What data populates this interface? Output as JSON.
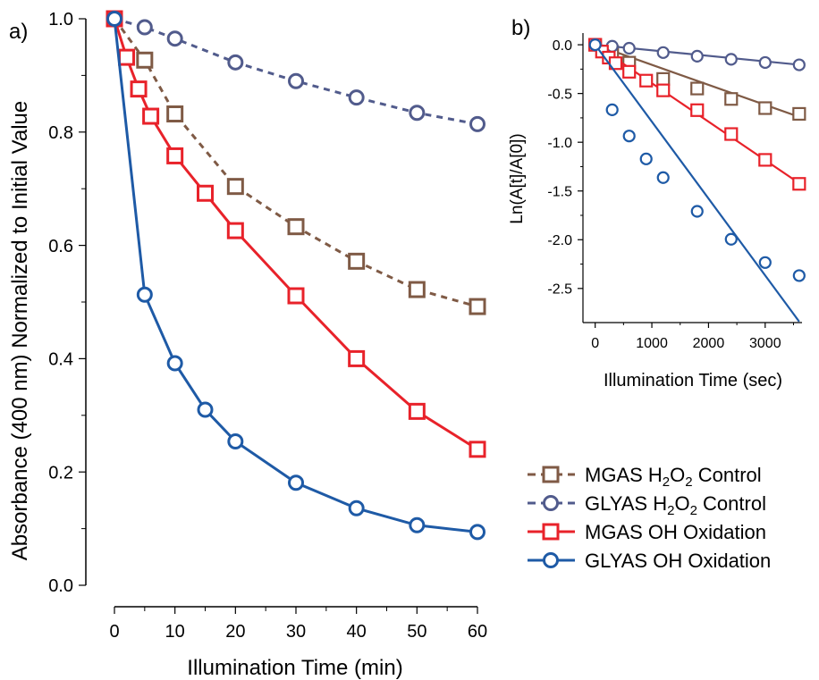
{
  "panel_labels": {
    "a": "a)",
    "b": "b)"
  },
  "legend": [
    {
      "id": "mgas_h2o2",
      "prefix": "MGAS H",
      "sub1": "2",
      "mid": "O",
      "sub2": "2",
      "suffix": " Control"
    },
    {
      "id": "glyas_h2o2",
      "prefix": "GLYAS H",
      "sub1": "2",
      "mid": "O",
      "sub2": "2",
      "suffix": " Control"
    },
    {
      "id": "mgas_oh",
      "prefix": "MGAS OH Oxidation"
    },
    {
      "id": "glyas_oh",
      "prefix": "GLYAS OH Oxidation"
    }
  ],
  "colors": {
    "mgas_h2o2": "#7f5a45",
    "glyas_h2o2": "#515b8c",
    "mgas_oh": "#e8222a",
    "glyas_oh": "#1e5aa6"
  },
  "chart_data": [
    {
      "id": "a",
      "type": "line",
      "xlabel": "Illumination Time (min)",
      "ylabel": "Absorbance (400 nm) Normalized to Initial Value",
      "xlim": [
        0,
        60
      ],
      "ylim": [
        0,
        1.0
      ],
      "xticks": [
        "0",
        "10",
        "20",
        "30",
        "40",
        "50",
        "60"
      ],
      "xtick_values": [
        0,
        10,
        20,
        30,
        40,
        50,
        60
      ],
      "yticks": [
        "0.0",
        "0.2",
        "0.4",
        "0.6",
        "0.8",
        "1.0"
      ],
      "ytick_values": [
        0,
        0.2,
        0.4,
        0.6,
        0.8,
        1.0
      ],
      "series": [
        {
          "key": "mgas_h2o2",
          "marker": "square",
          "line": "dashed",
          "x": [
            0,
            5,
            10,
            20,
            30,
            40,
            50,
            60
          ],
          "y": [
            1.0,
            0.927,
            0.832,
            0.704,
            0.633,
            0.572,
            0.522,
            0.492
          ]
        },
        {
          "key": "glyas_h2o2",
          "marker": "circle",
          "line": "dashed",
          "x": [
            0,
            5,
            10,
            20,
            30,
            40,
            50,
            60
          ],
          "y": [
            1.0,
            0.985,
            0.965,
            0.923,
            0.89,
            0.861,
            0.834,
            0.814
          ]
        },
        {
          "key": "mgas_oh",
          "marker": "square",
          "line": "solid",
          "x": [
            0,
            2,
            4,
            6,
            10,
            15,
            20,
            30,
            40,
            50,
            60
          ],
          "y": [
            1.0,
            0.932,
            0.876,
            0.828,
            0.758,
            0.692,
            0.626,
            0.511,
            0.4,
            0.307,
            0.24
          ]
        },
        {
          "key": "glyas_oh",
          "marker": "circle",
          "line": "solid",
          "x": [
            0,
            5,
            10,
            15,
            20,
            30,
            40,
            50,
            60
          ],
          "y": [
            1.0,
            0.513,
            0.392,
            0.31,
            0.254,
            0.181,
            0.136,
            0.106,
            0.094
          ]
        }
      ]
    },
    {
      "id": "b",
      "type": "scatter",
      "xlabel": "Illumination Time (sec)",
      "ylabel": "Ln(A[t]/A[0])",
      "xlim": [
        -200,
        3650
      ],
      "ylim": [
        -2.85,
        0.12
      ],
      "xticks": [
        "0",
        "1000",
        "2000",
        "3000"
      ],
      "xtick_values": [
        0,
        1000,
        2000,
        3000
      ],
      "yticks": [
        "0.0",
        "-0.5",
        "-1.0",
        "-1.5",
        "-2.0",
        "-2.5"
      ],
      "ytick_values": [
        0,
        -0.5,
        -1.0,
        -1.5,
        -2.0,
        -2.5
      ],
      "series": [
        {
          "key": "mgas_h2o2",
          "marker": "square",
          "x": [
            0,
            300,
            600,
            1200,
            1800,
            2400,
            3000,
            3600
          ],
          "y": [
            0,
            -0.075,
            -0.184,
            -0.351,
            -0.449,
            -0.556,
            -0.65,
            -0.709
          ],
          "fit": {
            "x": [
              0,
              3600
            ],
            "y": [
              0,
              -0.74
            ]
          }
        },
        {
          "key": "glyas_h2o2",
          "marker": "circle",
          "x": [
            0,
            300,
            600,
            1200,
            1800,
            2400,
            3000,
            3600
          ],
          "y": [
            0,
            -0.015,
            -0.036,
            -0.08,
            -0.117,
            -0.149,
            -0.182,
            -0.206
          ],
          "fit": {
            "x": [
              0,
              3600
            ],
            "y": [
              0,
              -0.205
            ]
          }
        },
        {
          "key": "mgas_oh",
          "marker": "square",
          "x": [
            0,
            120,
            240,
            360,
            600,
            900,
            1200,
            1800,
            2400,
            3000,
            3600
          ],
          "y": [
            0,
            -0.07,
            -0.132,
            -0.189,
            -0.277,
            -0.368,
            -0.468,
            -0.671,
            -0.916,
            -1.181,
            -1.427
          ],
          "fit": {
            "x": [
              0,
              3600
            ],
            "y": [
              0,
              -1.42
            ]
          }
        },
        {
          "key": "glyas_oh",
          "marker": "circle",
          "x": [
            0,
            300,
            600,
            900,
            1200,
            1800,
            2400,
            3000,
            3600
          ],
          "y": [
            0,
            -0.667,
            -0.936,
            -1.171,
            -1.363,
            -1.709,
            -1.995,
            -2.234,
            -2.368
          ],
          "fit": {
            "x": [
              0,
              3600
            ],
            "y": [
              0,
              -2.84
            ]
          }
        }
      ]
    }
  ]
}
